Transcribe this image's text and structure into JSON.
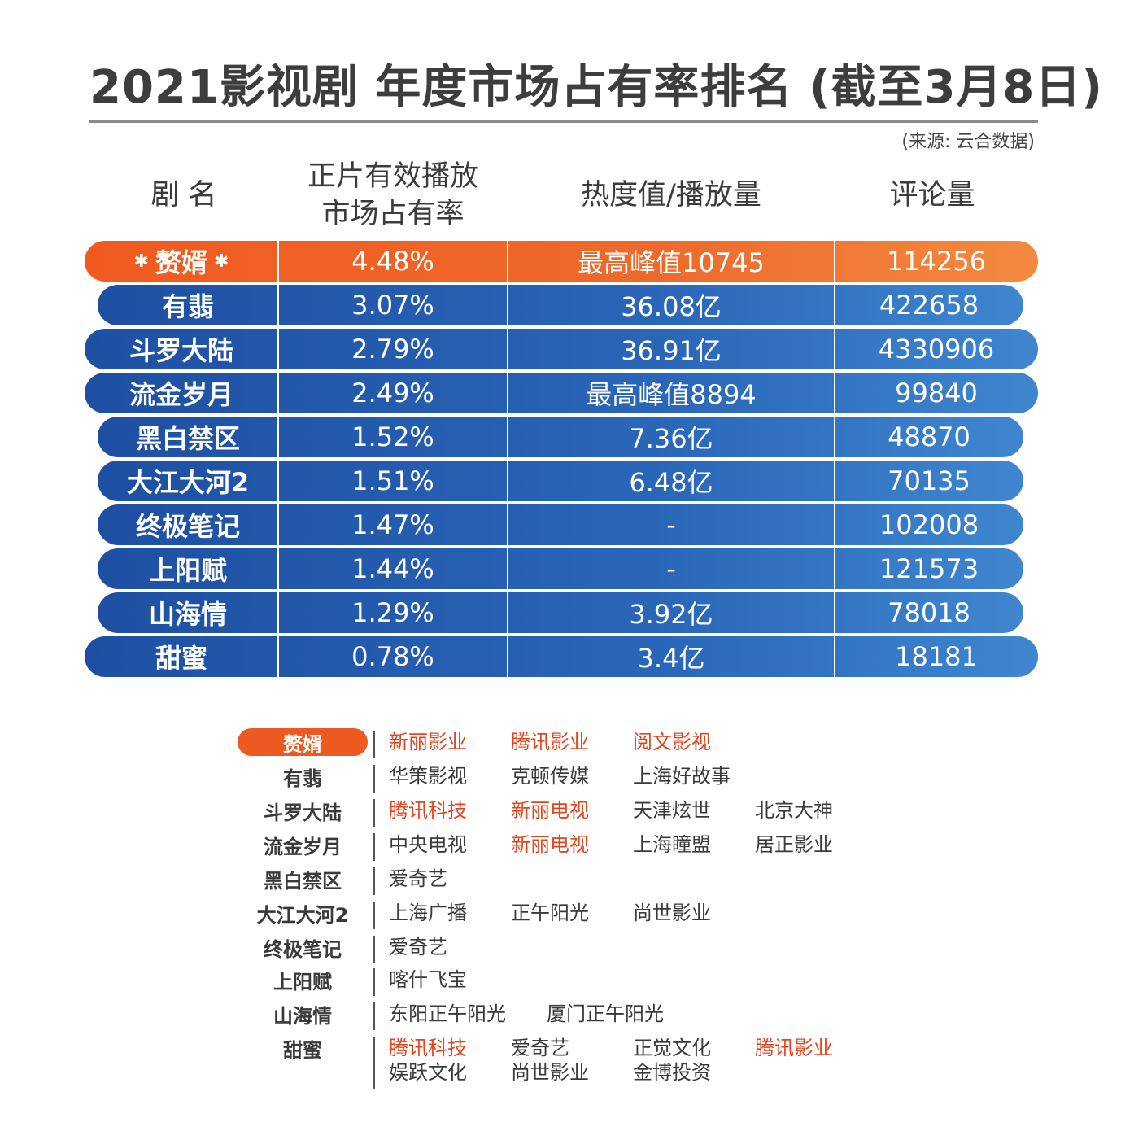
{
  "title": "2021影视剧 年度市场占有率排名 (截至3月8日)",
  "source": "(来源: 云合数据)",
  "headers": {
    "name": "剧 名",
    "share_line1": "正片有效播放",
    "share_line2": "市场占有率",
    "heat": "热度值/播放量",
    "comments": "评论量"
  },
  "colors": {
    "highlight": "#ec5a22",
    "row_blue": "#1e4fa2",
    "company_highlight": "#e8431c"
  },
  "rows": [
    {
      "name": "赘婿",
      "share": "4.48%",
      "heat": "最高峰值10745",
      "comments": "114256",
      "highlight": true
    },
    {
      "name": "有翡",
      "share": "3.07%",
      "heat": "36.08亿",
      "comments": "422658"
    },
    {
      "name": "斗罗大陆",
      "share": "2.79%",
      "heat": "36.91亿",
      "comments": "4330906"
    },
    {
      "name": "流金岁月",
      "share": "2.49%",
      "heat": "最高峰值8894",
      "comments": "99840"
    },
    {
      "name": "黑白禁区",
      "share": "1.52%",
      "heat": "7.36亿",
      "comments": "48870"
    },
    {
      "name": "大江大河2",
      "share": "1.51%",
      "heat": "6.48亿",
      "comments": "70135"
    },
    {
      "name": "终极笔记",
      "share": "1.47%",
      "heat": "-",
      "comments": "102008"
    },
    {
      "name": "上阳赋",
      "share": "1.44%",
      "heat": "-",
      "comments": "121573"
    },
    {
      "name": "山海情",
      "share": "1.29%",
      "heat": "3.92亿",
      "comments": "78018"
    },
    {
      "name": "甜蜜",
      "share": "0.78%",
      "heat": "3.4亿",
      "comments": "18181"
    }
  ],
  "producers": [
    {
      "name": "赘婿",
      "highlight": true,
      "companies": [
        {
          "text": "新丽影业",
          "hl": true
        },
        {
          "text": "腾讯影业",
          "hl": true
        },
        {
          "text": "阅文影视",
          "hl": true
        }
      ]
    },
    {
      "name": "有翡",
      "companies": [
        {
          "text": "华策影视"
        },
        {
          "text": "克顿传媒"
        },
        {
          "text": "上海好故事"
        }
      ]
    },
    {
      "name": "斗罗大陆",
      "companies": [
        {
          "text": "腾讯科技",
          "hl": true
        },
        {
          "text": "新丽电视",
          "hl": true
        },
        {
          "text": "天津炫世"
        },
        {
          "text": "北京大神"
        }
      ]
    },
    {
      "name": "流金岁月",
      "companies": [
        {
          "text": "中央电视"
        },
        {
          "text": "新丽电视",
          "hl": true
        },
        {
          "text": "上海瞳盟"
        },
        {
          "text": "居正影业"
        }
      ]
    },
    {
      "name": "黑白禁区",
      "companies": [
        {
          "text": "爱奇艺"
        }
      ]
    },
    {
      "name": "大江大河2",
      "companies": [
        {
          "text": "上海广播"
        },
        {
          "text": "正午阳光"
        },
        {
          "text": "尚世影业"
        }
      ]
    },
    {
      "name": "终极笔记",
      "companies": [
        {
          "text": "爱奇艺"
        }
      ]
    },
    {
      "name": "上阳赋",
      "companies": [
        {
          "text": "喀什飞宝"
        }
      ]
    },
    {
      "name": "山海情",
      "companies": [
        {
          "text": "东阳正午阳光"
        },
        {
          "text": "厦门正午阳光"
        }
      ]
    },
    {
      "name": "甜蜜",
      "companies": [
        {
          "text": "腾讯科技",
          "hl": true
        },
        {
          "text": "爱奇艺"
        },
        {
          "text": "正觉文化"
        },
        {
          "text": "腾讯影业",
          "hl": true
        },
        {
          "text": "娱跃文化"
        },
        {
          "text": "尚世影业"
        },
        {
          "text": "金博投资"
        }
      ]
    }
  ]
}
